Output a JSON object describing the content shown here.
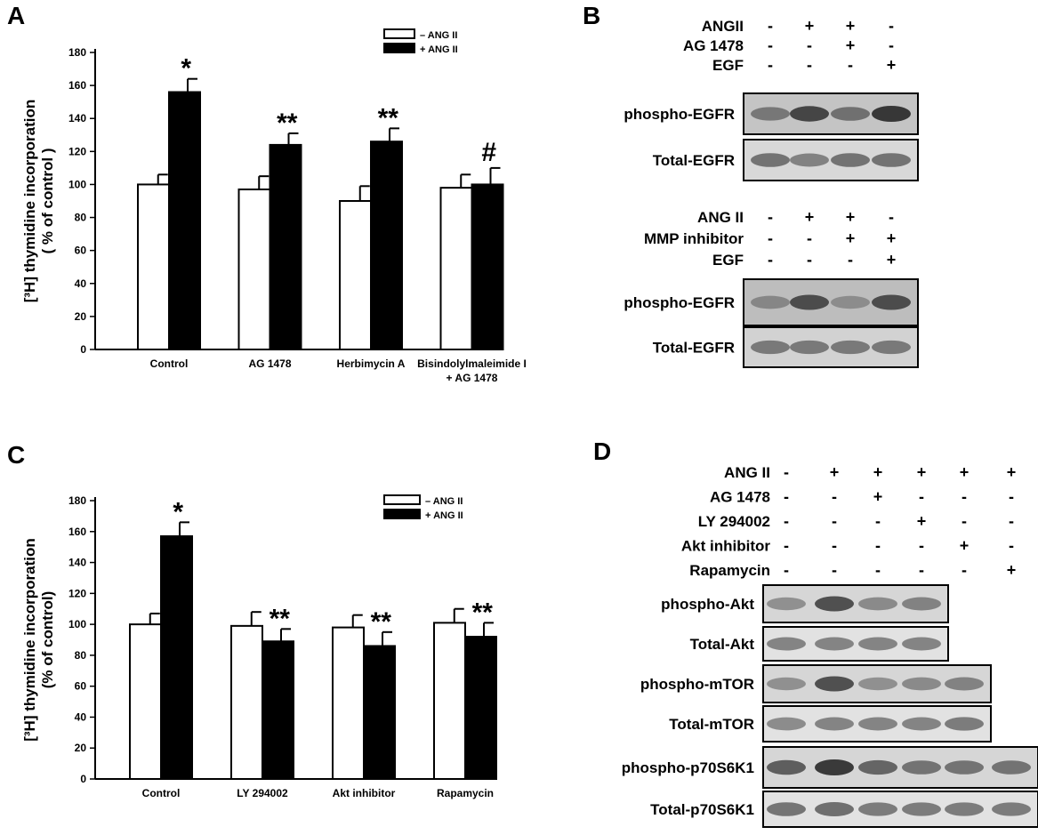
{
  "panels": {
    "a": {
      "letter": "A"
    },
    "b": {
      "letter": "B"
    },
    "c": {
      "letter": "C"
    },
    "d": {
      "letter": "D"
    }
  },
  "chart_data": [
    {
      "panel": "A",
      "type": "bar",
      "ylabel": "[³H] thymidine incorporation\n( % of control )",
      "ylim": [
        0,
        180
      ],
      "yticks": [
        0,
        20,
        40,
        60,
        80,
        100,
        120,
        140,
        160,
        180
      ],
      "categories": [
        "Control",
        "AG 1478",
        "Herbimycin A",
        "Bisindolylmaleimide I\n+ AG 1478"
      ],
      "legend": {
        "placement": "top-right",
        "entries": [
          "– ANG II",
          "+ ANG II"
        ]
      },
      "series": [
        {
          "name": "– ANG II",
          "color": "#ffffff",
          "values": [
            100,
            97,
            90,
            98
          ],
          "errors": [
            6,
            8,
            9,
            8
          ]
        },
        {
          "name": "+ ANG II",
          "color": "#000000",
          "values": [
            156,
            124,
            126,
            100
          ],
          "errors": [
            8,
            7,
            8,
            10
          ]
        }
      ],
      "annotations": [
        "*",
        "**",
        "**",
        "#"
      ]
    },
    {
      "panel": "C",
      "type": "bar",
      "ylabel": "[³H] thymidine incorporation\n(% of control)",
      "ylim": [
        0,
        180
      ],
      "yticks": [
        0,
        20,
        40,
        60,
        80,
        100,
        120,
        140,
        160,
        180
      ],
      "categories": [
        "Control",
        "LY 294002",
        "Akt inhibitor",
        "Rapamycin"
      ],
      "legend": {
        "placement": "top-right",
        "entries": [
          "– ANG II",
          "+ ANG II"
        ]
      },
      "series": [
        {
          "name": "– ANG II",
          "color": "#ffffff",
          "values": [
            100,
            99,
            98,
            101
          ],
          "errors": [
            7,
            9,
            8,
            9
          ]
        },
        {
          "name": "+ ANG II",
          "color": "#000000",
          "values": [
            157,
            89,
            86,
            92
          ],
          "errors": [
            9,
            8,
            9,
            9
          ]
        }
      ],
      "annotations": [
        "*",
        "**",
        "**",
        "**"
      ]
    }
  ],
  "blots": {
    "b": {
      "group1": {
        "conditions": [
          {
            "label": "ANGII",
            "signs": [
              "-",
              "+",
              "+",
              "-"
            ]
          },
          {
            "label": "AG 1478",
            "signs": [
              "-",
              "-",
              "+",
              "-"
            ]
          },
          {
            "label": "EGF",
            "signs": [
              "-",
              "-",
              "-",
              "+"
            ]
          }
        ],
        "rows": [
          {
            "label": "phospho-EGFR",
            "intensities": [
              0.55,
              0.9,
              0.6,
              1.0
            ]
          },
          {
            "label": "Total-EGFR",
            "intensities": [
              0.6,
              0.5,
              0.6,
              0.6
            ]
          }
        ]
      },
      "group2": {
        "conditions": [
          {
            "label": "ANG II",
            "signs": [
              "-",
              "+",
              "+",
              "-"
            ]
          },
          {
            "label": "MMP inhibitor",
            "signs": [
              "-",
              "-",
              "+",
              "+"
            ]
          },
          {
            "label": "EGF",
            "signs": [
              "-",
              "-",
              "-",
              "+"
            ]
          }
        ],
        "rows": [
          {
            "label": "phospho-EGFR",
            "intensities": [
              0.45,
              0.85,
              0.4,
              0.85
            ]
          },
          {
            "label": "Total-EGFR",
            "intensities": [
              0.55,
              0.55,
              0.55,
              0.55
            ]
          }
        ]
      }
    },
    "d": {
      "conditions": [
        {
          "label": "ANG II",
          "signs": [
            "-",
            "+",
            "+",
            "+",
            "+",
            "+"
          ]
        },
        {
          "label": "AG 1478",
          "signs": [
            "-",
            "-",
            "+",
            "-",
            "-",
            "-"
          ]
        },
        {
          "label": "LY 294002",
          "signs": [
            "-",
            "-",
            "-",
            "+",
            "-",
            "-"
          ]
        },
        {
          "label": "Akt inhibitor",
          "signs": [
            "-",
            "-",
            "-",
            "-",
            "+",
            "-"
          ]
        },
        {
          "label": "Rapamycin",
          "signs": [
            "-",
            "-",
            "-",
            "-",
            "-",
            "+"
          ]
        }
      ],
      "rows": [
        {
          "label": "phospho-Akt",
          "intensities": [
            0.4,
            0.85,
            0.45,
            0.5
          ]
        },
        {
          "label": "Total-Akt",
          "intensities": [
            0.5,
            0.5,
            0.5,
            0.5
          ]
        },
        {
          "label": "phospho-mTOR",
          "intensities": [
            0.4,
            0.85,
            0.4,
            0.45,
            0.5
          ]
        },
        {
          "label": "Total-mTOR",
          "intensities": [
            0.45,
            0.5,
            0.5,
            0.5,
            0.55
          ]
        },
        {
          "label": "phospho-p70S6K1",
          "intensities": [
            0.75,
            1.0,
            0.7,
            0.6,
            0.6,
            0.6
          ]
        },
        {
          "label": "Total-p70S6K1",
          "intensities": [
            0.6,
            0.65,
            0.55,
            0.55,
            0.55,
            0.55
          ]
        }
      ]
    }
  }
}
